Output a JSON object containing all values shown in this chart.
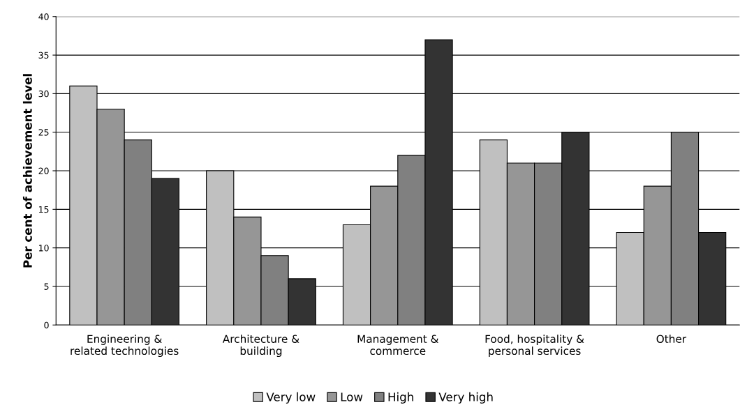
{
  "chart_data": {
    "type": "bar",
    "ylabel": "Per cent of achievement level",
    "categories": [
      "Engineering &\nrelated technologies",
      "Architecture &\nbuilding",
      "Management &\ncommerce",
      "Food, hospitality &\npersonal services",
      "Other"
    ],
    "series": [
      {
        "name": "Very low",
        "color": "#c0c0c0",
        "values": [
          31,
          20,
          13,
          24,
          12
        ]
      },
      {
        "name": "Low",
        "color": "#969696",
        "values": [
          28,
          14,
          18,
          21,
          18
        ]
      },
      {
        "name": "High",
        "color": "#808080",
        "values": [
          24,
          9,
          22,
          21,
          25
        ]
      },
      {
        "name": "Very high",
        "color": "#333333",
        "values": [
          19,
          6,
          37,
          25,
          12
        ]
      }
    ],
    "ylim": [
      0,
      40
    ],
    "yticks": [
      0,
      5,
      10,
      15,
      20,
      25,
      30,
      35,
      40
    ],
    "grid": "y",
    "legend": "bottom"
  }
}
